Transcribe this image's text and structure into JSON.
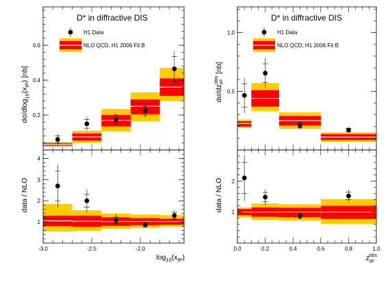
{
  "colors": {
    "band_outer": "#ffcc00",
    "band_inner": "#ff0000",
    "central": "#ffffff",
    "marker": "#000000"
  },
  "chart_data": [
    {
      "type": "bar",
      "panel": "top-left",
      "title": "D* in diffractive DIS",
      "ylabel": "dσ/dlog10(xIP) [nb]",
      "xlim": [
        -3.0,
        -1.55
      ],
      "ylim": [
        0,
        0.82
      ],
      "yticks": [
        0.2,
        0.4,
        0.6
      ],
      "ytick_labels": [
        "0.2",
        "0.4",
        "0.6"
      ],
      "legend": {
        "position": "top-left",
        "data_label": "H1 Data",
        "model_label": "NLO QCD, H1 2006 Fit B"
      },
      "bins": [
        {
          "lo": -3.0,
          "hi": -2.7,
          "outer": [
            0.02,
            0.045
          ],
          "inner": [
            0.025,
            0.04
          ],
          "central": 0.033
        },
        {
          "lo": -2.7,
          "hi": -2.4,
          "outer": [
            0.04,
            0.11
          ],
          "inner": [
            0.055,
            0.095
          ],
          "central": 0.075
        },
        {
          "lo": -2.4,
          "hi": -2.1,
          "outer": [
            0.105,
            0.235
          ],
          "inner": [
            0.135,
            0.2
          ],
          "central": 0.17
        },
        {
          "lo": -2.1,
          "hi": -1.8,
          "outer": [
            0.165,
            0.33
          ],
          "inner": [
            0.205,
            0.29
          ],
          "central": 0.25
        },
        {
          "lo": -1.8,
          "hi": -1.5,
          "outer": [
            0.28,
            0.47
          ],
          "inner": [
            0.31,
            0.41
          ],
          "central": 0.36
        }
      ],
      "points": [
        {
          "x": -2.85,
          "y": 0.06,
          "stat": 0.02,
          "tot": 0.03
        },
        {
          "x": -2.55,
          "y": 0.15,
          "stat": 0.025,
          "tot": 0.04
        },
        {
          "x": -2.25,
          "y": 0.175,
          "stat": 0.025,
          "tot": 0.035
        },
        {
          "x": -1.95,
          "y": 0.225,
          "stat": 0.025,
          "tot": 0.04
        },
        {
          "x": -1.65,
          "y": 0.465,
          "stat": 0.07,
          "tot": 0.1
        }
      ]
    },
    {
      "type": "bar",
      "panel": "bottom-left",
      "xlabel": "log10(xIP)",
      "ylabel": "data / NLO",
      "xlim": [
        -3.0,
        -1.55
      ],
      "ylim": [
        0,
        4.4
      ],
      "xticks": [
        -3.0,
        -2.5,
        -2.0
      ],
      "xtick_labels": [
        "-3.0",
        "-2.5",
        "-2.0"
      ],
      "yticks": [
        1,
        2,
        3,
        4
      ],
      "ytick_labels": [
        "1",
        "2",
        "3",
        "4"
      ],
      "bins": [
        {
          "lo": -3.0,
          "hi": -2.7,
          "outer": [
            0.55,
            1.85
          ],
          "inner": [
            0.8,
            1.3
          ],
          "central": 1.05
        },
        {
          "lo": -2.7,
          "hi": -2.4,
          "outer": [
            0.58,
            1.55
          ],
          "inner": [
            0.78,
            1.3
          ],
          "central": 1.03
        },
        {
          "lo": -2.4,
          "hi": -2.1,
          "outer": [
            0.67,
            1.4
          ],
          "inner": [
            0.82,
            1.22
          ],
          "central": 1.02
        },
        {
          "lo": -2.1,
          "hi": -1.8,
          "outer": [
            0.72,
            1.35
          ],
          "inner": [
            0.85,
            1.18
          ],
          "central": 1.02
        },
        {
          "lo": -1.8,
          "hi": -1.5,
          "outer": [
            0.78,
            1.32
          ],
          "inner": [
            0.87,
            1.15
          ],
          "central": 1.02
        }
      ],
      "points": [
        {
          "x": -2.85,
          "y": 2.7,
          "stat": 0.7,
          "tot": 1.0
        },
        {
          "x": -2.55,
          "y": 2.0,
          "stat": 0.3,
          "tot": 0.55
        },
        {
          "x": -2.25,
          "y": 1.08,
          "stat": 0.15,
          "tot": 0.3
        },
        {
          "x": -1.95,
          "y": 0.87,
          "stat": 0.1,
          "tot": 0.15
        },
        {
          "x": -1.65,
          "y": 1.3,
          "stat": 0.15,
          "tot": 0.25
        }
      ]
    },
    {
      "type": "bar",
      "panel": "top-right",
      "title": "D* in diffractive DIS",
      "ylabel": "dσ/dzIPobs [nb]",
      "xlim": [
        0,
        1
      ],
      "ylim": [
        0,
        1.22
      ],
      "yticks": [
        0.5,
        1.0
      ],
      "ytick_labels": [
        "0.5",
        "1.0"
      ],
      "legend": {
        "position": "top-right",
        "data_label": "H1 Data",
        "model_label": "NLO QCD, H1 2006 Fit B"
      },
      "bins": [
        {
          "lo": 0.0,
          "hi": 0.1,
          "outer": [
            0.19,
            0.26
          ],
          "inner": [
            0.2,
            0.245
          ],
          "central": 0.225
        },
        {
          "lo": 0.1,
          "hi": 0.3,
          "outer": [
            0.33,
            0.57
          ],
          "inner": [
            0.37,
            0.51
          ],
          "central": 0.44
        },
        {
          "lo": 0.3,
          "hi": 0.6,
          "outer": [
            0.18,
            0.32
          ],
          "inner": [
            0.21,
            0.29
          ],
          "central": 0.25
        },
        {
          "lo": 0.6,
          "hi": 1.0,
          "outer": [
            0.07,
            0.15
          ],
          "inner": [
            0.085,
            0.135
          ],
          "central": 0.11
        }
      ],
      "points": [
        {
          "x": 0.05,
          "y": 0.465,
          "stat": 0.1,
          "tot": 0.15
        },
        {
          "x": 0.2,
          "y": 0.655,
          "stat": 0.08,
          "tot": 0.13
        },
        {
          "x": 0.45,
          "y": 0.21,
          "stat": 0.02,
          "tot": 0.035
        },
        {
          "x": 0.8,
          "y": 0.17,
          "stat": 0.015,
          "tot": 0.025
        }
      ]
    },
    {
      "type": "bar",
      "panel": "bottom-right",
      "xlabel": "zIPobs",
      "ylabel": "data / NLO",
      "xlim": [
        0,
        1
      ],
      "ylim": [
        0,
        3.0
      ],
      "xticks": [
        0,
        0.2,
        0.4,
        0.6,
        0.8,
        1.0
      ],
      "xtick_labels": [
        "0.0",
        "0.2",
        "0.4",
        "0.6",
        "0.8",
        "1.0"
      ],
      "yticks": [
        1,
        2
      ],
      "ytick_labels": [
        "1",
        "2"
      ],
      "bins": [
        {
          "lo": 0.0,
          "hi": 0.1,
          "outer": [
            0.83,
            1.15
          ],
          "inner": [
            0.9,
            1.1
          ],
          "central": 1.0
        },
        {
          "lo": 0.1,
          "hi": 0.3,
          "outer": [
            0.75,
            1.28
          ],
          "inner": [
            0.85,
            1.15
          ],
          "central": 1.0
        },
        {
          "lo": 0.3,
          "hi": 0.6,
          "outer": [
            0.72,
            1.25
          ],
          "inner": [
            0.84,
            1.14
          ],
          "central": 1.0
        },
        {
          "lo": 0.6,
          "hi": 1.0,
          "outer": [
            0.62,
            1.42
          ],
          "inner": [
            0.78,
            1.2
          ],
          "central": 1.0
        }
      ],
      "points": [
        {
          "x": 0.05,
          "y": 2.1,
          "stat": 0.5,
          "tot": 0.75
        },
        {
          "x": 0.2,
          "y": 1.48,
          "stat": 0.15,
          "tot": 0.25
        },
        {
          "x": 0.45,
          "y": 0.88,
          "stat": 0.08,
          "tot": 0.12
        },
        {
          "x": 0.8,
          "y": 1.52,
          "stat": 0.12,
          "tot": 0.2
        }
      ]
    }
  ]
}
